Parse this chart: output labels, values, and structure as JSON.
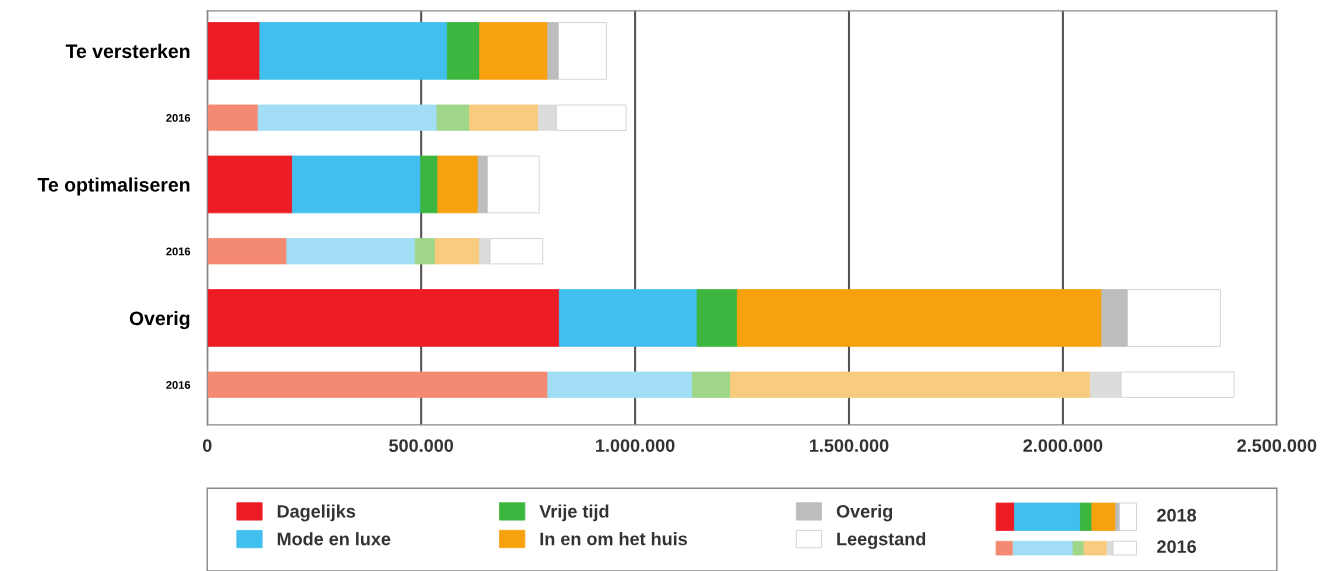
{
  "chart_data": {
    "type": "bar",
    "orientation": "horizontal",
    "stacked": true,
    "categories": [
      "Te versterken",
      "2016",
      "Te optimaliseren",
      "2016",
      "Overig",
      "2016"
    ],
    "series": [
      {
        "name": "Dagelijks",
        "colors": [
          "#ed1c24",
          "#f58a72",
          "#ed1c24",
          "#f58a72",
          "#ed1c24",
          "#f58a72"
        ],
        "values": [
          123000,
          119000,
          199000,
          186000,
          823000,
          796000
        ]
      },
      {
        "name": "Mode en luxe",
        "colors": [
          "#41bfef",
          "#a1def5",
          "#41bfef",
          "#a1def5",
          "#41bfef",
          "#a1def5"
        ],
        "values": [
          438000,
          418000,
          300000,
          300000,
          322000,
          338000
        ]
      },
      {
        "name": "Vrije tijd",
        "colors": [
          "#3db63f",
          "#9fd68a",
          "#3db63f",
          "#9fd68a",
          "#3db63f",
          "#9fd68a"
        ],
        "values": [
          76000,
          76000,
          40000,
          47000,
          94000,
          89000
        ]
      },
      {
        "name": "In en om het huis",
        "colors": [
          "#f7a10f",
          "#f8cb7e",
          "#f7a10f",
          "#f8cb7e",
          "#f7a10f",
          "#f8cb7e"
        ],
        "values": [
          159000,
          161000,
          94000,
          103000,
          852000,
          841000
        ]
      },
      {
        "name": "Overig",
        "colors": [
          "#bdbdbd",
          "#dcdcdc",
          "#bdbdbd",
          "#dcdcdc",
          "#bdbdbd",
          "#dcdcdc"
        ],
        "values": [
          25000,
          42000,
          22000,
          25000,
          60000,
          72000
        ]
      },
      {
        "name": "Leegstand",
        "colors": [
          "#ffffff",
          "#ffffff",
          "#ffffff",
          "#ffffff",
          "#ffffff",
          "#ffffff"
        ],
        "values": [
          112000,
          163000,
          121000,
          123000,
          217000,
          264000
        ]
      }
    ],
    "xlim": [
      0,
      2500000
    ],
    "xticks": [
      0,
      {
        "value": 500000,
        "label": "500.000"
      },
      {
        "value": 1000000,
        "label": "1.000.000"
      },
      {
        "value": 1500000,
        "label": "1.500.000"
      },
      {
        "value": 2000000,
        "label": "2.000.000"
      },
      {
        "value": 2500000,
        "label": "2.500.000"
      }
    ],
    "grid": "x",
    "legend": "bottom",
    "annotations": [
      "2018",
      "2016"
    ]
  }
}
